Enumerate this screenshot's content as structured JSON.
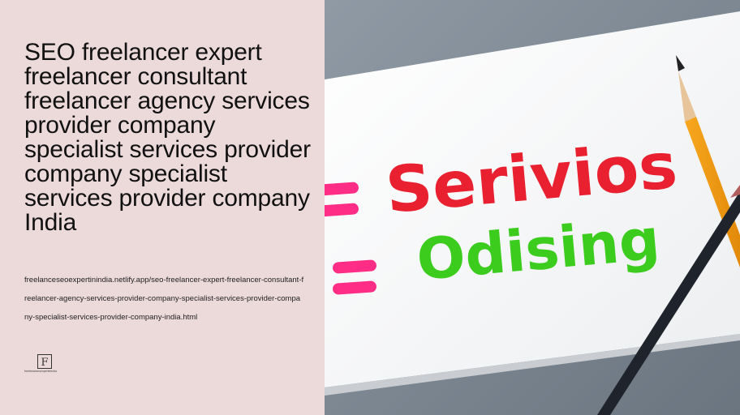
{
  "page": {
    "title": "SEO freelancer expert freelancer consultant freelancer agency services provider company specialist services provider company specialist services provider company India",
    "url": "freelanceseoexpertinindia.netlify.app/seo-freelancer-expert-freelancer-consultant-freelancer-agency-services-provider-company-specialist-services-provider-company-specialist-services-provider-company-india.html"
  },
  "logo": {
    "letter": "F",
    "text": "freelanceseoexpertinindia"
  },
  "image": {
    "word1": "Serivios",
    "word2": "Odising"
  },
  "colors": {
    "panel_bg": "#ecdadb",
    "word1": "#e8202f",
    "word2": "#3ccc1e",
    "marker": "#ff2d85"
  }
}
